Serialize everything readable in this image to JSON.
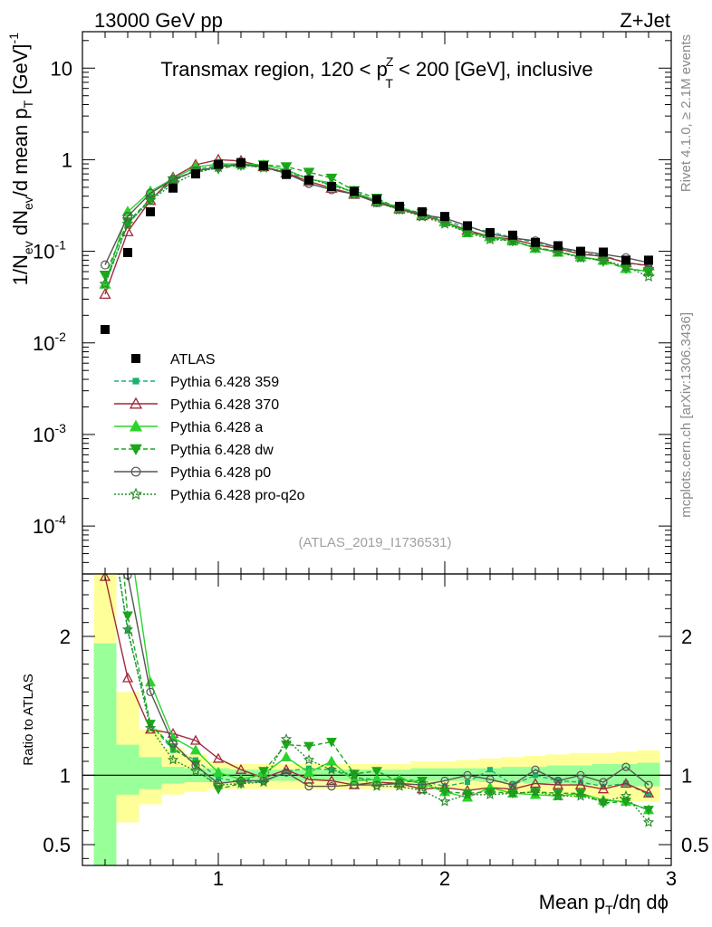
{
  "header": {
    "energy_label": "13000 GeV pp",
    "process_label": "Z+Jet"
  },
  "side_labels": {
    "rivet": "Rivet 4.1.0, ≥ 2.1M events",
    "mcplots": "mcplots.cern.ch [arXiv:1306.3436]"
  },
  "chart_data": {
    "type": "line",
    "title": "Transmax region, 120 < p_T^Z < 200 [GeV], inclusive",
    "title_parts": {
      "before": "Transmax region, 120 < p",
      "sub": "T",
      "sup": "Z",
      "after": " < 200 [GeV], inclusive"
    },
    "analysis_id": "(ATLAS_2019_I1736531)",
    "xlabel": "Mean p_T/dη dϕ",
    "xlabel_parts": {
      "before": "Mean p",
      "sub": "T",
      "after": "/dη dϕ"
    },
    "ylabel": "1/N_ev dN_ev/d mean p_T [GeV]^-1",
    "ylabel_parts": {
      "t1": "1/N",
      "s1": "ev",
      "t2": " dN",
      "s2": "ev",
      "t3": "/d mean p",
      "s3": "T",
      "t4": " [GeV]",
      "sup": "-1"
    },
    "ratio_ylabel": "Ratio to ATLAS",
    "xlim": [
      0.4,
      3.0
    ],
    "ylim": [
      3e-05,
      25
    ],
    "yscale": "log",
    "ratio_ylim": [
      0.35,
      2.45
    ],
    "x_ticks": [
      1,
      2,
      3
    ],
    "x_tick_labels": [
      "1",
      "2",
      "3"
    ],
    "y_ticks": [
      {
        "base": "10",
        "exp": "-4",
        "value": 0.0001
      },
      {
        "base": "10",
        "exp": "-3",
        "value": 0.001
      },
      {
        "base": "10",
        "exp": "-2",
        "value": 0.01
      },
      {
        "base": "10",
        "exp": "-1",
        "value": 0.1
      },
      {
        "base": "1",
        "exp": "",
        "value": 1
      },
      {
        "base": "10",
        "exp": "",
        "value": 10
      }
    ],
    "ratio_ticks": [
      {
        "label": "0.5",
        "value": 0.5
      },
      {
        "label": "1",
        "value": 1
      },
      {
        "label": "2",
        "value": 2
      }
    ],
    "legend_position": "middle-left",
    "x": [
      0.5,
      0.6,
      0.7,
      0.8,
      0.9,
      1.0,
      1.1,
      1.2,
      1.3,
      1.4,
      1.5,
      1.6,
      1.7,
      1.8,
      1.9,
      2.0,
      2.1,
      2.2,
      2.3,
      2.4,
      2.5,
      2.6,
      2.7,
      2.8,
      2.9
    ],
    "data": {
      "name": "ATLAS",
      "values": [
        0.014,
        0.097,
        0.27,
        0.49,
        0.7,
        0.89,
        0.93,
        0.86,
        0.69,
        0.6,
        0.51,
        0.45,
        0.37,
        0.31,
        0.27,
        0.24,
        0.19,
        0.16,
        0.15,
        0.125,
        0.115,
        0.1,
        0.098,
        0.08,
        0.08
      ]
    },
    "bands": {
      "yellow_lo": [
        0.3,
        0.66,
        0.79,
        0.86,
        0.88,
        0.9,
        0.9,
        0.9,
        0.9,
        0.9,
        0.9,
        0.9,
        0.9,
        0.9,
        0.9,
        0.9,
        0.9,
        0.88,
        0.87,
        0.86,
        0.85,
        0.84,
        0.83,
        0.81,
        0.81
      ],
      "yellow_hi": [
        2.45,
        1.6,
        1.33,
        1.2,
        1.15,
        1.1,
        1.08,
        1.08,
        1.08,
        1.08,
        1.08,
        1.08,
        1.08,
        1.08,
        1.1,
        1.1,
        1.11,
        1.12,
        1.13,
        1.14,
        1.15,
        1.16,
        1.16,
        1.17,
        1.18
      ],
      "green_lo": [
        0.35,
        0.86,
        0.9,
        0.94,
        0.95,
        0.95,
        0.96,
        0.96,
        0.96,
        0.96,
        0.96,
        0.96,
        0.96,
        0.96,
        0.96,
        0.96,
        0.96,
        0.95,
        0.95,
        0.94,
        0.94,
        0.93,
        0.93,
        0.92,
        0.92
      ],
      "green_hi": [
        1.95,
        1.22,
        1.13,
        1.06,
        1.05,
        1.05,
        1.04,
        1.04,
        1.04,
        1.04,
        1.04,
        1.04,
        1.04,
        1.04,
        1.05,
        1.05,
        1.05,
        1.05,
        1.06,
        1.06,
        1.07,
        1.07,
        1.08,
        1.08,
        1.09
      ]
    },
    "series": [
      {
        "name": "Pythia 6.428 359",
        "color": "#19b26e",
        "dash": "5,3",
        "marker": "square",
        "values": [
          0.043,
          0.198,
          0.37,
          0.58,
          0.78,
          0.87,
          0.88,
          0.82,
          0.71,
          0.63,
          0.53,
          0.44,
          0.36,
          0.3,
          0.26,
          0.22,
          0.18,
          0.165,
          0.14,
          0.125,
          0.11,
          0.095,
          0.09,
          0.075,
          0.069
        ]
      },
      {
        "name": "Pythia 6.428 370",
        "color": "#a02a3a",
        "dash": "",
        "marker": "triangle-open",
        "values": [
          0.034,
          0.164,
          0.36,
          0.64,
          0.88,
          1.0,
          0.97,
          0.84,
          0.72,
          0.58,
          0.49,
          0.42,
          0.35,
          0.29,
          0.245,
          0.21,
          0.17,
          0.145,
          0.135,
          0.118,
          0.107,
          0.093,
          0.088,
          0.075,
          0.07
        ]
      },
      {
        "name": "Pythia 6.428 a",
        "color": "#2bd42b",
        "dash": "",
        "marker": "triangle",
        "values": [
          0.044,
          0.27,
          0.45,
          0.62,
          0.83,
          0.9,
          0.9,
          0.87,
          0.78,
          0.61,
          0.56,
          0.43,
          0.36,
          0.3,
          0.255,
          0.21,
          0.16,
          0.145,
          0.13,
          0.108,
          0.098,
          0.087,
          0.08,
          0.065,
          0.06
        ]
      },
      {
        "name": "Pythia 6.428 dw",
        "color": "#1aa81a",
        "dash": "5,3",
        "marker": "triangle-down",
        "values": [
          0.055,
          0.21,
          0.37,
          0.59,
          0.76,
          0.8,
          0.87,
          0.88,
          0.84,
          0.73,
          0.63,
          0.46,
          0.38,
          0.29,
          0.26,
          0.21,
          0.165,
          0.14,
          0.13,
          0.11,
          0.1,
          0.087,
          0.078,
          0.065,
          0.06
        ]
      },
      {
        "name": "Pythia 6.428 p0",
        "color": "#555555",
        "dash": "",
        "marker": "circle-open",
        "values": [
          0.071,
          0.24,
          0.43,
          0.61,
          0.75,
          0.84,
          0.89,
          0.83,
          0.71,
          0.55,
          0.47,
          0.42,
          0.34,
          0.29,
          0.25,
          0.23,
          0.19,
          0.155,
          0.14,
          0.13,
          0.11,
          0.1,
          0.093,
          0.085,
          0.075
        ]
      },
      {
        "name": "Pythia 6.428 pro-q2o",
        "color": "#2a8a2a",
        "dash": "2,2",
        "marker": "star-open",
        "values": [
          0.044,
          0.2,
          0.36,
          0.54,
          0.72,
          0.83,
          0.87,
          0.82,
          0.75,
          0.63,
          0.52,
          0.45,
          0.34,
          0.285,
          0.24,
          0.2,
          0.16,
          0.135,
          0.13,
          0.11,
          0.098,
          0.085,
          0.08,
          0.068,
          0.053
        ]
      }
    ],
    "ratios": [
      [
        3.1,
        2.04,
        1.37,
        1.18,
        1.11,
        0.98,
        0.95,
        0.95,
        1.03,
        1.05,
        1.04,
        0.98,
        0.97,
        0.97,
        0.96,
        0.92,
        0.95,
        1.04,
        0.93,
        1.0,
        0.96,
        0.95,
        0.92,
        0.94,
        0.86
      ],
      [
        2.43,
        1.7,
        1.33,
        1.3,
        1.25,
        1.12,
        1.04,
        0.98,
        1.04,
        0.97,
        0.96,
        0.93,
        0.95,
        0.94,
        0.9,
        0.91,
        0.89,
        0.91,
        0.9,
        0.94,
        0.93,
        0.93,
        0.9,
        0.94,
        0.87
      ],
      [
        3.1,
        2.8,
        1.67,
        1.27,
        1.18,
        1.02,
        0.97,
        1.01,
        1.13,
        1.02,
        1.1,
        0.96,
        0.97,
        0.97,
        0.94,
        0.88,
        0.84,
        0.91,
        0.87,
        0.86,
        0.85,
        0.87,
        0.82,
        0.81,
        0.75
      ]
    ],
    "ratios_more": [
      [
        3.9,
        2.15,
        1.37,
        1.2,
        1.08,
        0.9,
        0.94,
        1.03,
        1.22,
        1.21,
        1.24,
        1.01,
        1.03,
        0.95,
        0.96,
        0.88,
        0.87,
        0.88,
        0.87,
        0.88,
        0.87,
        0.87,
        0.8,
        0.81,
        0.75
      ],
      [
        5.1,
        2.44,
        1.6,
        1.23,
        1.07,
        0.94,
        0.96,
        0.96,
        1.02,
        0.92,
        0.92,
        0.93,
        0.93,
        0.94,
        0.93,
        0.96,
        1.0,
        0.97,
        0.93,
        1.04,
        0.96,
        1.0,
        0.95,
        1.06,
        0.93
      ]
    ],
    "ratio_last": [
      3.1,
      2.05,
      1.34,
      1.11,
      1.03,
      0.93,
      0.94,
      0.95,
      1.26,
      1.11,
      1.04,
      1.0,
      0.92,
      0.92,
      0.89,
      0.81,
      0.86,
      0.86,
      0.87,
      0.88,
      0.85,
      0.85,
      0.81,
      0.85,
      0.66
    ]
  }
}
